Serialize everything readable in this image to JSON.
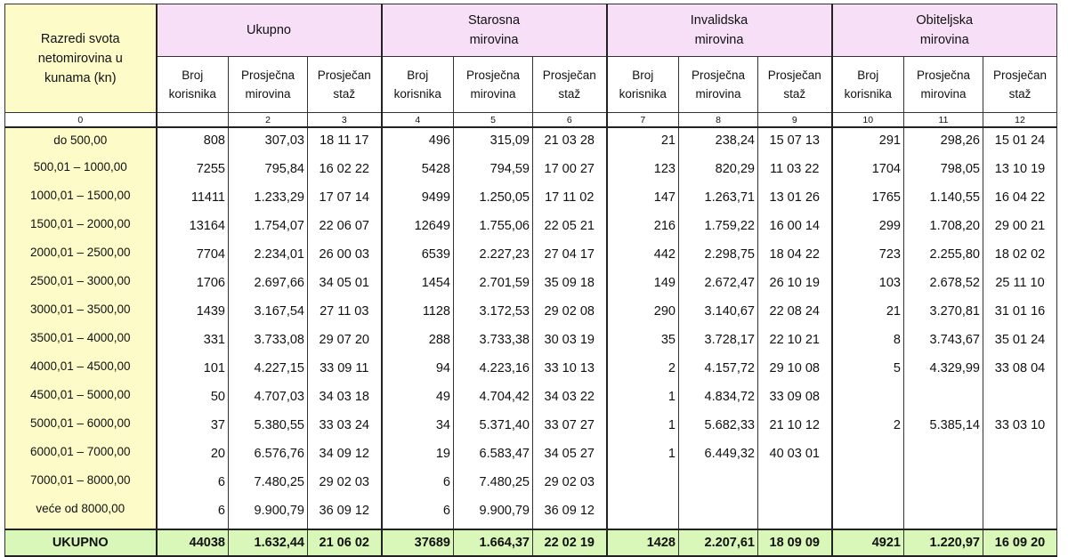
{
  "table": {
    "corner_header": "Razredi svota netomirovina u kunama (kn)",
    "groups": [
      {
        "label": "Ukupno"
      },
      {
        "label": "Starosna mirovina"
      },
      {
        "label": "Invalidska mirovina"
      },
      {
        "label": "Obiteljska mirovina"
      }
    ],
    "subheaders": {
      "broj": "Broj korisnika",
      "prosjecna": "Prosječna mirovina",
      "staz": "Prosječan staž"
    },
    "column_index": [
      "0",
      "",
      "2",
      "3",
      "4",
      "5",
      "6",
      "7",
      "8",
      "9",
      "10",
      "11",
      "12"
    ],
    "rows": [
      {
        "range": "do  500,00",
        "cells": [
          "808",
          "307,03",
          "18 11 17",
          "496",
          "315,09",
          "21 03 28",
          "21",
          "238,24",
          "15 07 13",
          "291",
          "298,26",
          "15 01 24"
        ]
      },
      {
        "range": "500,01  –  1000,00",
        "cells": [
          "7255",
          "795,84",
          "16 02 22",
          "5428",
          "794,59",
          "17 00 27",
          "123",
          "820,29",
          "11 03 22",
          "1704",
          "798,05",
          "13 10 19"
        ]
      },
      {
        "range": "1000,01  –  1500,00",
        "cells": [
          "11411",
          "1.233,29",
          "17 07 14",
          "9499",
          "1.250,05",
          "17 11 02",
          "147",
          "1.263,71",
          "13 01 26",
          "1765",
          "1.140,55",
          "16 04 22"
        ]
      },
      {
        "range": "1500,01  –  2000,00",
        "cells": [
          "13164",
          "1.754,07",
          "22 06 07",
          "12649",
          "1.755,06",
          "22 05 21",
          "216",
          "1.759,22",
          "16 00 14",
          "299",
          "1.708,20",
          "29 00 21"
        ]
      },
      {
        "range": "2000,01  –  2500,00",
        "cells": [
          "7704",
          "2.234,01",
          "26 00 03",
          "6539",
          "2.227,23",
          "27 04 17",
          "442",
          "2.298,75",
          "18 04 22",
          "723",
          "2.255,80",
          "18 02 02"
        ]
      },
      {
        "range": "2500,01  –  3000,00",
        "cells": [
          "1706",
          "2.697,66",
          "34 05 01",
          "1454",
          "2.701,59",
          "35 09 18",
          "149",
          "2.672,47",
          "26 10 19",
          "103",
          "2.678,52",
          "25 11 10"
        ]
      },
      {
        "range": "3000,01  –  3500,00",
        "cells": [
          "1439",
          "3.167,54",
          "27 11 03",
          "1128",
          "3.172,53",
          "29 02 08",
          "290",
          "3.140,67",
          "22 08 24",
          "21",
          "3.270,81",
          "31 01 16"
        ]
      },
      {
        "range": "3500,01  –  4000,00",
        "cells": [
          "331",
          "3.733,08",
          "29 07 20",
          "288",
          "3.733,38",
          "30 03 19",
          "35",
          "3.728,17",
          "22 10 21",
          "8",
          "3.743,67",
          "35 01 24"
        ]
      },
      {
        "range": "4000,01  –  4500,00",
        "cells": [
          "101",
          "4.227,15",
          "33 09 11",
          "94",
          "4.223,16",
          "33 10 13",
          "2",
          "4.157,72",
          "29 10 08",
          "5",
          "4.329,99",
          "33 08 04"
        ]
      },
      {
        "range": "4500,01  –  5000,00",
        "cells": [
          "50",
          "4.707,03",
          "34 03 18",
          "49",
          "4.704,42",
          "34 03 22",
          "1",
          "4.834,72",
          "33 09 08",
          "",
          "",
          ""
        ]
      },
      {
        "range": "5000,01  –  6000,00",
        "cells": [
          "37",
          "5.380,55",
          "33 03 24",
          "34",
          "5.371,40",
          "33 07 27",
          "1",
          "5.682,33",
          "21 10 12",
          "2",
          "5.385,14",
          "33 03 10"
        ]
      },
      {
        "range": "6000,01  –  7000,00",
        "cells": [
          "20",
          "6.576,76",
          "34 09 12",
          "19",
          "6.583,47",
          "34 05 27",
          "1",
          "6.449,32",
          "40 03 01",
          "",
          "",
          ""
        ]
      },
      {
        "range": "7000,01  –  8000,00",
        "cells": [
          "6",
          "7.480,25",
          "29 02 03",
          "6",
          "7.480,25",
          "29 02 03",
          "",
          "",
          "",
          "",
          "",
          ""
        ]
      },
      {
        "range": "veće od  8000,00",
        "cells": [
          "6",
          "9.900,79",
          "36 09 12",
          "6",
          "9.900,79",
          "36 09 12",
          "",
          "",
          "",
          "",
          "",
          ""
        ]
      }
    ],
    "total": {
      "label": "UKUPNO",
      "cells": [
        "44038",
        "1.632,44",
        "21 06 02",
        "37689",
        "1.664,37",
        "22 02 19",
        "1428",
        "2.207,61",
        "18 09 09",
        "4921",
        "1.220,97",
        "16 09 20"
      ]
    }
  },
  "colors": {
    "corner_bg": "#fdfcc8",
    "group_header_bg": "#f7dff7",
    "total_row_bg": "#d9f7b9",
    "border": "#333333"
  }
}
